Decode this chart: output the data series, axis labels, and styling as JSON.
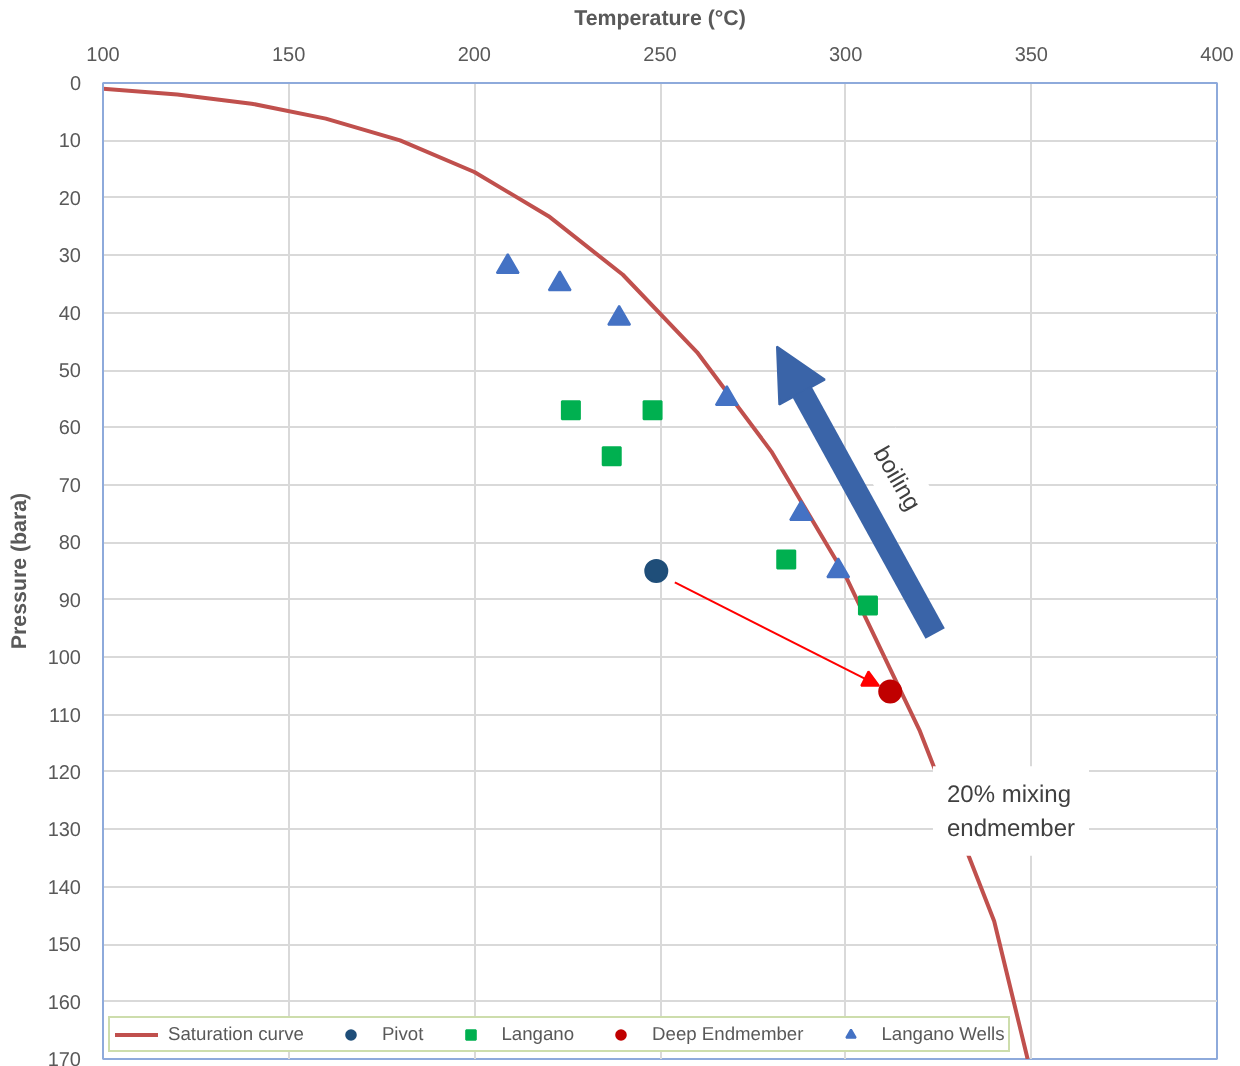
{
  "chart_data": {
    "type": "scatter",
    "xlabel": "Temperature (°C)",
    "ylabel": "Pressure (bara)",
    "xlim": [
      100,
      400
    ],
    "xticks": [
      100,
      150,
      200,
      250,
      300,
      350,
      400
    ],
    "ylim": [
      170,
      0
    ],
    "yticks": [
      0,
      10,
      20,
      30,
      40,
      50,
      60,
      70,
      80,
      90,
      100,
      110,
      120,
      130,
      140,
      150,
      160,
      170
    ],
    "grid": true,
    "legend": "bottom left",
    "series": [
      {
        "name": "Saturation curve",
        "type": "line",
        "marker": "none",
        "color": "#c0504d",
        "x": [
          100,
          120,
          140,
          160,
          180,
          200,
          220,
          240,
          260,
          280,
          300,
          320,
          340,
          349
        ],
        "values": [
          1,
          2,
          3.6,
          6.2,
          10,
          15.5,
          23.2,
          33.4,
          46.9,
          64.2,
          85.9,
          112.9,
          146,
          170
        ]
      },
      {
        "name": "Pivot",
        "marker": "circle",
        "color": "#1f4e79",
        "x": [
          249
        ],
        "values": [
          85
        ]
      },
      {
        "name": "Langano",
        "marker": "square",
        "color": "#00b050",
        "x": [
          226,
          248,
          237,
          284,
          306
        ],
        "values": [
          57,
          57,
          65,
          83,
          91
        ]
      },
      {
        "name": "Deep Endmember",
        "marker": "circle",
        "color": "#c00000",
        "x": [
          312
        ],
        "values": [
          106
        ]
      },
      {
        "name": "Langano Wells",
        "marker": "triangle",
        "color": "#4472c4",
        "x": [
          209,
          223,
          239,
          268,
          288,
          298
        ],
        "values": [
          32,
          35,
          41,
          55,
          75,
          85
        ]
      }
    ],
    "annotations": [
      "boiling",
      "20% mixing endmember"
    ]
  }
}
